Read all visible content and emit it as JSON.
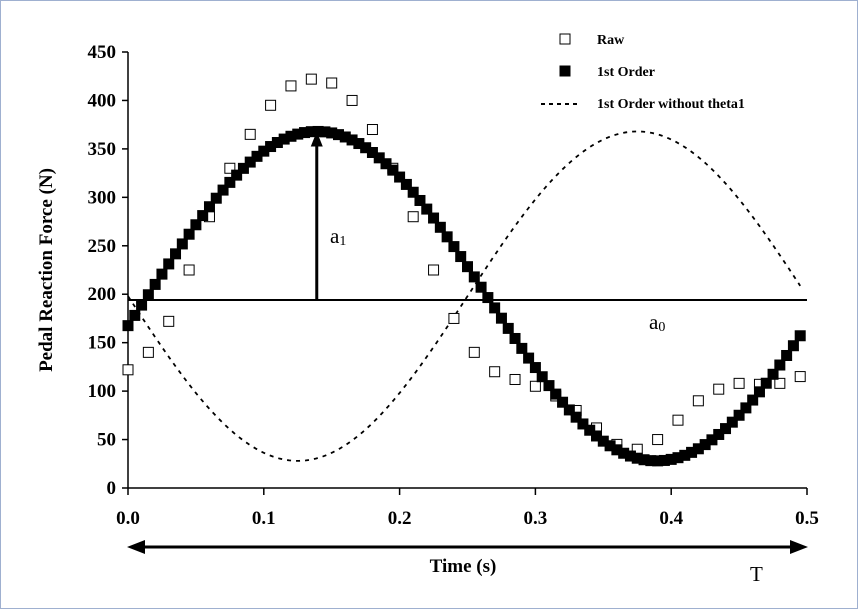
{
  "chart_data": {
    "type": "scatter",
    "xlabel": "Time (s)",
    "ylabel": "Pedal Reaction Force (N)",
    "xlim": [
      0.0,
      0.5
    ],
    "ylim": [
      0,
      450
    ],
    "x_ticks": [
      "0.0",
      "0.1",
      "0.2",
      "0.3",
      "0.4",
      "0.5"
    ],
    "y_ticks": [
      "0",
      "50",
      "100",
      "150",
      "200",
      "250",
      "300",
      "350",
      "400",
      "450"
    ],
    "grid": false,
    "legend_position": "top-right",
    "series": [
      {
        "name": "Raw",
        "marker": "hollow-square",
        "x": [
          0.0,
          0.015,
          0.03,
          0.045,
          0.06,
          0.075,
          0.09,
          0.105,
          0.12,
          0.135,
          0.15,
          0.165,
          0.18,
          0.195,
          0.21,
          0.225,
          0.24,
          0.255,
          0.27,
          0.285,
          0.3,
          0.315,
          0.33,
          0.345,
          0.36,
          0.375,
          0.39,
          0.405,
          0.42,
          0.435,
          0.45,
          0.465,
          0.48,
          0.495
        ],
        "y": [
          122,
          140,
          172,
          225,
          280,
          330,
          365,
          395,
          415,
          422,
          418,
          400,
          370,
          330,
          280,
          225,
          175,
          140,
          120,
          112,
          105,
          95,
          80,
          62,
          45,
          40,
          50,
          70,
          90,
          102,
          108,
          107,
          108,
          115
        ]
      },
      {
        "name": "1st Order",
        "marker": "filled-square",
        "formula": "a0 + a1*sin(2*pi*x/T + theta1)",
        "a0": 198,
        "a1": 170,
        "T": 0.5,
        "theta1": -0.18,
        "x_range": [
          0.0,
          0.495
        ],
        "n_points": 100
      },
      {
        "name": "1st Order without theta1",
        "marker": "dashed-line",
        "formula": "a0 - a1*sin(2*pi*x/T)",
        "a0": 198,
        "a1": 170,
        "T": 0.5,
        "x_range": [
          0.0,
          0.495
        ]
      }
    ],
    "horizontal_line": {
      "y": 194
    },
    "annotations": {
      "a1_main": "a",
      "a1_sub": "1",
      "a0_main": "a",
      "a0_sub": "0",
      "T_label": "T"
    }
  }
}
